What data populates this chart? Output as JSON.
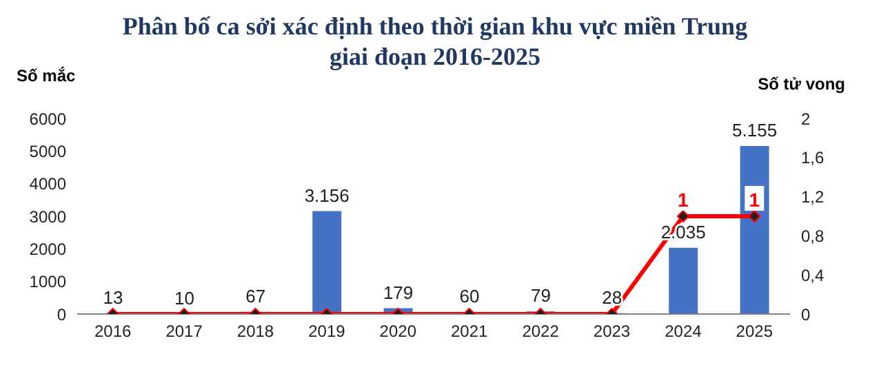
{
  "chart_data": {
    "type": "bar",
    "title": "Phân bố ca sởi xác định theo thời gian khu vực miền Trung giai đoạn 2016-2025",
    "ylabel": "Số mắc",
    "y2label": "Số tử vong",
    "categories": [
      "2016",
      "2017",
      "2018",
      "2019",
      "2020",
      "2021",
      "2022",
      "2023",
      "2024",
      "2025"
    ],
    "series": [
      {
        "color": "#4472c4",
        "values": [
          13,
          10,
          67,
          3156,
          179,
          60,
          79,
          28,
          2035,
          5155
        ],
        "value_labels": [
          "13",
          "10",
          "67",
          "3.156",
          "179",
          "60",
          "79",
          "28",
          "2.035",
          "5.155"
        ]
      },
      {
        "type": "line",
        "axis": "y2",
        "color": "#ff0000",
        "marker": "diamond",
        "values": [
          0,
          0,
          0,
          0,
          0,
          0,
          0,
          0,
          1,
          1
        ],
        "value_labels": [
          null,
          null,
          null,
          null,
          null,
          null,
          null,
          null,
          "1",
          "1"
        ]
      }
    ],
    "ylim": [
      0,
      6000
    ],
    "yticks": [
      0,
      1000,
      2000,
      3000,
      4000,
      5000,
      6000
    ],
    "y2lim": [
      0,
      2
    ],
    "y2ticks": [
      0,
      {
        "value": 0.4,
        "label": "0,4"
      },
      {
        "value": 0.8,
        "label": "0,8"
      },
      {
        "value": 1.2,
        "label": "1,2"
      },
      {
        "value": 1.6,
        "label": "1,6"
      },
      2
    ],
    "grid": false,
    "legend": false
  }
}
